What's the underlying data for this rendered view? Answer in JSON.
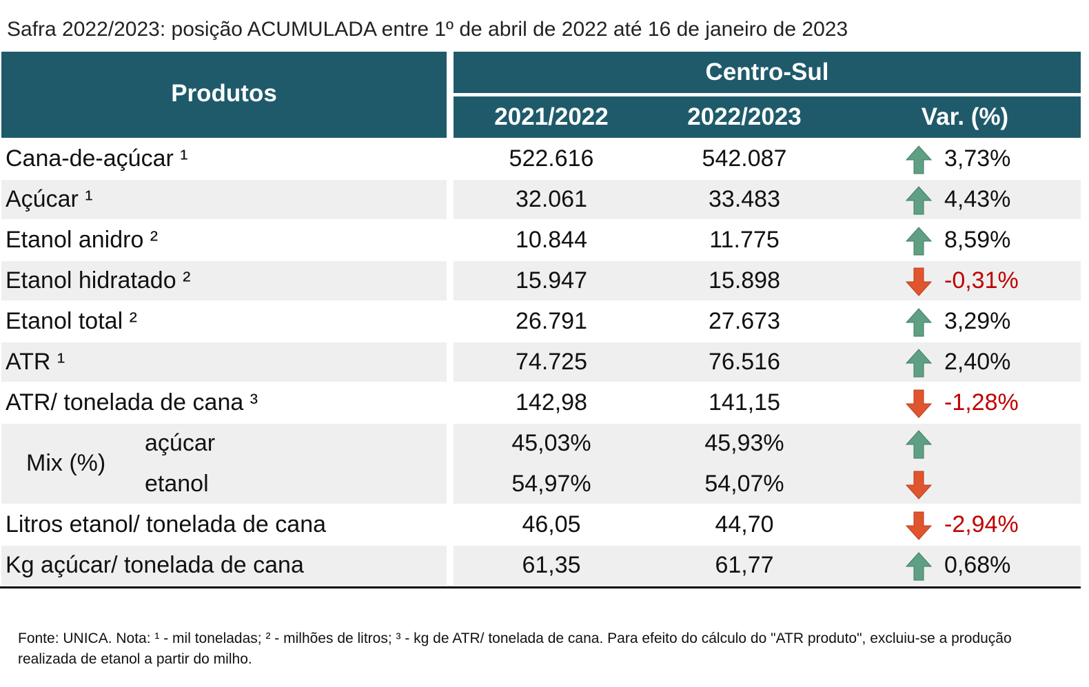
{
  "title": "Safra 2022/2023: posição ACUMULADA entre 1º de abril de 2022 até 16 de janeiro de 2023",
  "header": {
    "products": "Produtos",
    "region": "Centro-Sul",
    "col1": "2021/2022",
    "col2": "2022/2023",
    "var": "Var. (%)"
  },
  "rows": [
    {
      "label": "Cana-de-açúcar ¹",
      "v1": "522.616",
      "v2": "542.087",
      "var": "3,73%",
      "arrow": "up"
    },
    {
      "label": "Açúcar ¹",
      "v1": "32.061",
      "v2": "33.483",
      "var": "4,43%",
      "arrow": "up"
    },
    {
      "label": "Etanol anidro ²",
      "v1": "10.844",
      "v2": "11.775",
      "var": "8,59%",
      "arrow": "up"
    },
    {
      "label": "Etanol hidratado ²",
      "v1": "15.947",
      "v2": "15.898",
      "var": "-0,31%",
      "arrow": "down"
    },
    {
      "label": "Etanol total ²",
      "v1": "26.791",
      "v2": "27.673",
      "var": "3,29%",
      "arrow": "up"
    },
    {
      "label": "ATR ¹",
      "v1": "74.725",
      "v2": "76.516",
      "var": "2,40%",
      "arrow": "up"
    },
    {
      "label": "ATR/ tonelada de cana ³",
      "v1": "142,98",
      "v2": "141,15",
      "var": "-1,28%",
      "arrow": "down"
    },
    {
      "label": "Mix (%)",
      "parts": [
        {
          "label": "açúcar",
          "v1": "45,03%",
          "v2": "45,93%",
          "arrow": "up"
        },
        {
          "label": "etanol",
          "v1": "54,97%",
          "v2": "54,07%",
          "arrow": "down"
        }
      ]
    },
    {
      "label": "Litros etanol/ tonelada de cana",
      "v1": "46,05",
      "v2": "44,70",
      "var": "-2,94%",
      "arrow": "down"
    },
    {
      "label": "Kg açúcar/ tonelada de cana",
      "v1": "61,35",
      "v2": "61,77",
      "var": "0,68%",
      "arrow": "up"
    }
  ],
  "footnote": "Fonte: UNICA. Nota: ¹ - mil toneladas; ² - milhões de litros; ³ - kg de ATR/ tonelada de cana. Para efeito do cálculo do \"ATR produto\", excluiu-se a produção realizada de etanol a partir do milho."
}
